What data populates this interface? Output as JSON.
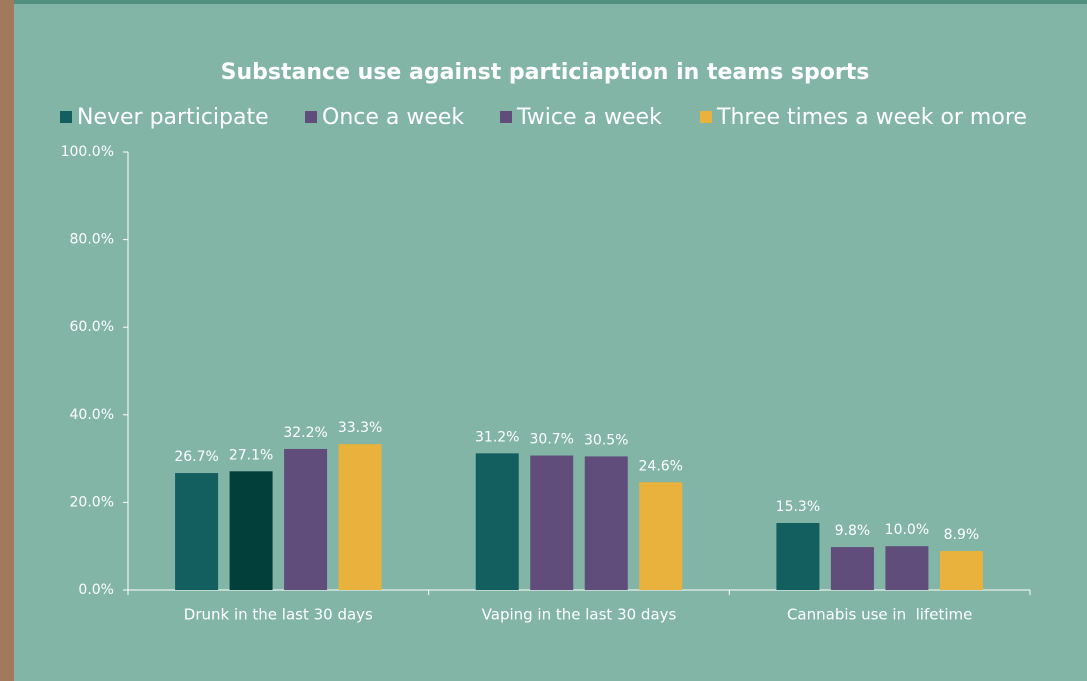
{
  "chart_data": {
    "type": "bar",
    "title": "Substance use against particiaption in teams sports",
    "categories": [
      "Drunk in the last 30 days",
      "Vaping in the last 30 days",
      "Cannabis use in  lifetime"
    ],
    "series": [
      {
        "name": "Never participate",
        "color": "#135f5f",
        "values": [
          26.7,
          31.2,
          15.3
        ],
        "value_labels": [
          "26.7%",
          "31.2%",
          "15.3%"
        ]
      },
      {
        "name": "Once a week",
        "color": "#604d7b",
        "colors": [
          "#033f3a",
          "#604d7b",
          "#604d7b"
        ],
        "values": [
          27.1,
          30.7,
          9.8
        ],
        "value_labels": [
          "27.1%",
          "30.7%",
          "9.8%"
        ]
      },
      {
        "name": "Twice a week",
        "color": "#604d7b",
        "values": [
          32.2,
          30.5,
          10.0
        ],
        "value_labels": [
          "32.2%",
          "30.5%",
          "10.0%"
        ]
      },
      {
        "name": "Three times a week or more",
        "color": "#e9b23d",
        "values": [
          33.3,
          24.6,
          8.9
        ],
        "value_labels": [
          "33.3%",
          "24.6%",
          "8.9%"
        ]
      }
    ],
    "ylim": [
      0,
      100
    ],
    "yticks": [
      {
        "value": 0,
        "label": "0.0%"
      },
      {
        "value": 20,
        "label": "20.0%"
      },
      {
        "value": 40,
        "label": "40.0%"
      },
      {
        "value": 60,
        "label": "60.0%"
      },
      {
        "value": 80,
        "label": "80.0%"
      },
      {
        "value": 100,
        "label": "100.0%"
      }
    ],
    "grid": false
  }
}
